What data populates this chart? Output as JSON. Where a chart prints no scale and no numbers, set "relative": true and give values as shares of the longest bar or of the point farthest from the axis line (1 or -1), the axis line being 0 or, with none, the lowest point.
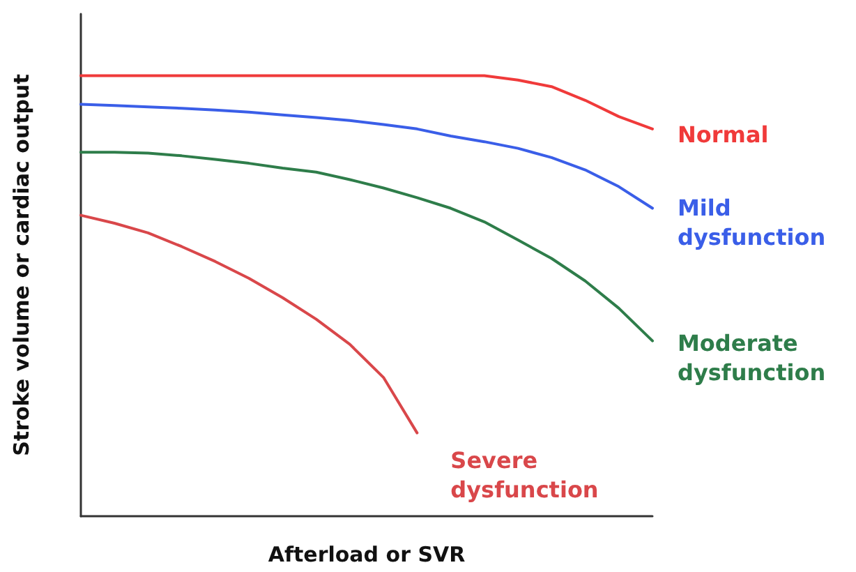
{
  "chart_data": {
    "type": "line",
    "relative": true,
    "xlabel": "Afterload or SVR",
    "ylabel": "Stroke volume or cardiac output",
    "categories": [
      null,
      null,
      null,
      null,
      null,
      null,
      null,
      null,
      null,
      null,
      null,
      null,
      null,
      null,
      null,
      null,
      null,
      null
    ],
    "series": [
      {
        "name": "Normal",
        "color": "#f03a3a",
        "values": [
          1,
          1,
          1,
          1,
          1,
          1,
          1,
          1,
          1,
          1,
          1,
          1,
          1,
          0.99,
          0.975,
          0.944,
          0.907,
          0.879
        ]
      },
      {
        "name": "Mild dysfunction",
        "color": "#3a5ee8",
        "values": [
          0.935,
          0.932,
          0.929,
          0.926,
          0.922,
          0.917,
          0.911,
          0.905,
          0.898,
          0.889,
          0.879,
          0.863,
          0.85,
          0.835,
          0.814,
          0.786,
          0.748,
          0.699
        ]
      },
      {
        "name": "Moderate dysfunction",
        "color": "#2e7d4a",
        "values": [
          0.826,
          0.826,
          0.824,
          0.818,
          0.81,
          0.801,
          0.79,
          0.781,
          0.764,
          0.745,
          0.723,
          0.699,
          0.668,
          0.627,
          0.585,
          0.534,
          0.472,
          0.398
        ]
      },
      {
        "name": "Severe dysfunction",
        "color": "#d9474a",
        "values": [
          0.683,
          0.665,
          0.643,
          0.612,
          0.578,
          0.54,
          0.496,
          0.447,
          0.39,
          0.315,
          0.189,
          null,
          null,
          null,
          null,
          null,
          null,
          null
        ]
      }
    ],
    "grid": false,
    "marker": "none",
    "line_style": "solid"
  }
}
